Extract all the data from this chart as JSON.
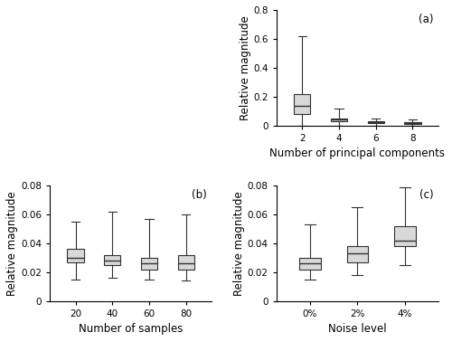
{
  "panel_a": {
    "label": "(a)",
    "xlabel": "Number of principal components",
    "ylabel": "Relative magnitude",
    "xlabels": [
      "2",
      "4",
      "6",
      "8"
    ],
    "ylim": [
      0,
      0.8
    ],
    "yticks": [
      0,
      0.2,
      0.4,
      0.6,
      0.8
    ],
    "boxes": [
      {
        "whislo": 0.0,
        "q1": 0.08,
        "med": 0.14,
        "q3": 0.22,
        "whishi": 0.62
      },
      {
        "whislo": 0.0,
        "q1": 0.03,
        "med": 0.04,
        "q3": 0.05,
        "whishi": 0.12
      },
      {
        "whislo": 0.0,
        "q1": 0.015,
        "med": 0.025,
        "q3": 0.03,
        "whishi": 0.05
      },
      {
        "whislo": 0.0,
        "q1": 0.01,
        "med": 0.02,
        "q3": 0.025,
        "whishi": 0.045
      }
    ]
  },
  "panel_b": {
    "label": "(b)",
    "xlabel": "Number of samples",
    "ylabel": "Relative magnitude",
    "xlabels": [
      "20",
      "40",
      "60",
      "80"
    ],
    "ylim": [
      0,
      0.08
    ],
    "yticks": [
      0,
      0.02,
      0.04,
      0.06,
      0.08
    ],
    "boxes": [
      {
        "whislo": 0.015,
        "q1": 0.027,
        "med": 0.03,
        "q3": 0.036,
        "whishi": 0.055
      },
      {
        "whislo": 0.016,
        "q1": 0.025,
        "med": 0.028,
        "q3": 0.032,
        "whishi": 0.062
      },
      {
        "whislo": 0.015,
        "q1": 0.022,
        "med": 0.026,
        "q3": 0.03,
        "whishi": 0.057
      },
      {
        "whislo": 0.014,
        "q1": 0.022,
        "med": 0.026,
        "q3": 0.032,
        "whishi": 0.06
      }
    ]
  },
  "panel_c": {
    "label": "(c)",
    "xlabel": "Noise level",
    "ylabel": "Relative magnitude",
    "xlabels": [
      "0%",
      "2%",
      "4%"
    ],
    "ylim": [
      0,
      0.08
    ],
    "yticks": [
      0,
      0.02,
      0.04,
      0.06,
      0.08
    ],
    "boxes": [
      {
        "whislo": 0.015,
        "q1": 0.022,
        "med": 0.026,
        "q3": 0.03,
        "whishi": 0.053
      },
      {
        "whislo": 0.018,
        "q1": 0.027,
        "med": 0.033,
        "q3": 0.038,
        "whishi": 0.065
      },
      {
        "whislo": 0.025,
        "q1": 0.038,
        "med": 0.042,
        "q3": 0.052,
        "whishi": 0.079
      }
    ]
  },
  "box_facecolor": "#d8d8d8",
  "median_color": "#333333",
  "whisker_color": "#333333",
  "cap_color": "#333333",
  "box_edge_color": "#333333",
  "fontsize": 7.5,
  "label_fontsize": 8.5,
  "tick_fontsize": 7.5
}
